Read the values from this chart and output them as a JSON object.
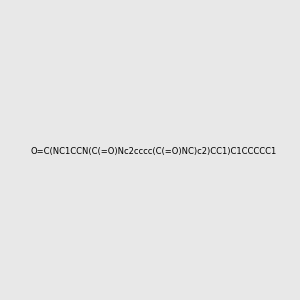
{
  "smiles": "O=C(NC1CCN(C(=O)Nc2cccc(C(=O)NC)c2)CC1)C1CCCCC1",
  "image_size": 300,
  "background_color": "#e8e8e8",
  "bond_color": "#1a1a1a",
  "atom_colors": {
    "N": "#1a6b8a",
    "O": "#cc2200",
    "C": "#1a1a1a"
  }
}
